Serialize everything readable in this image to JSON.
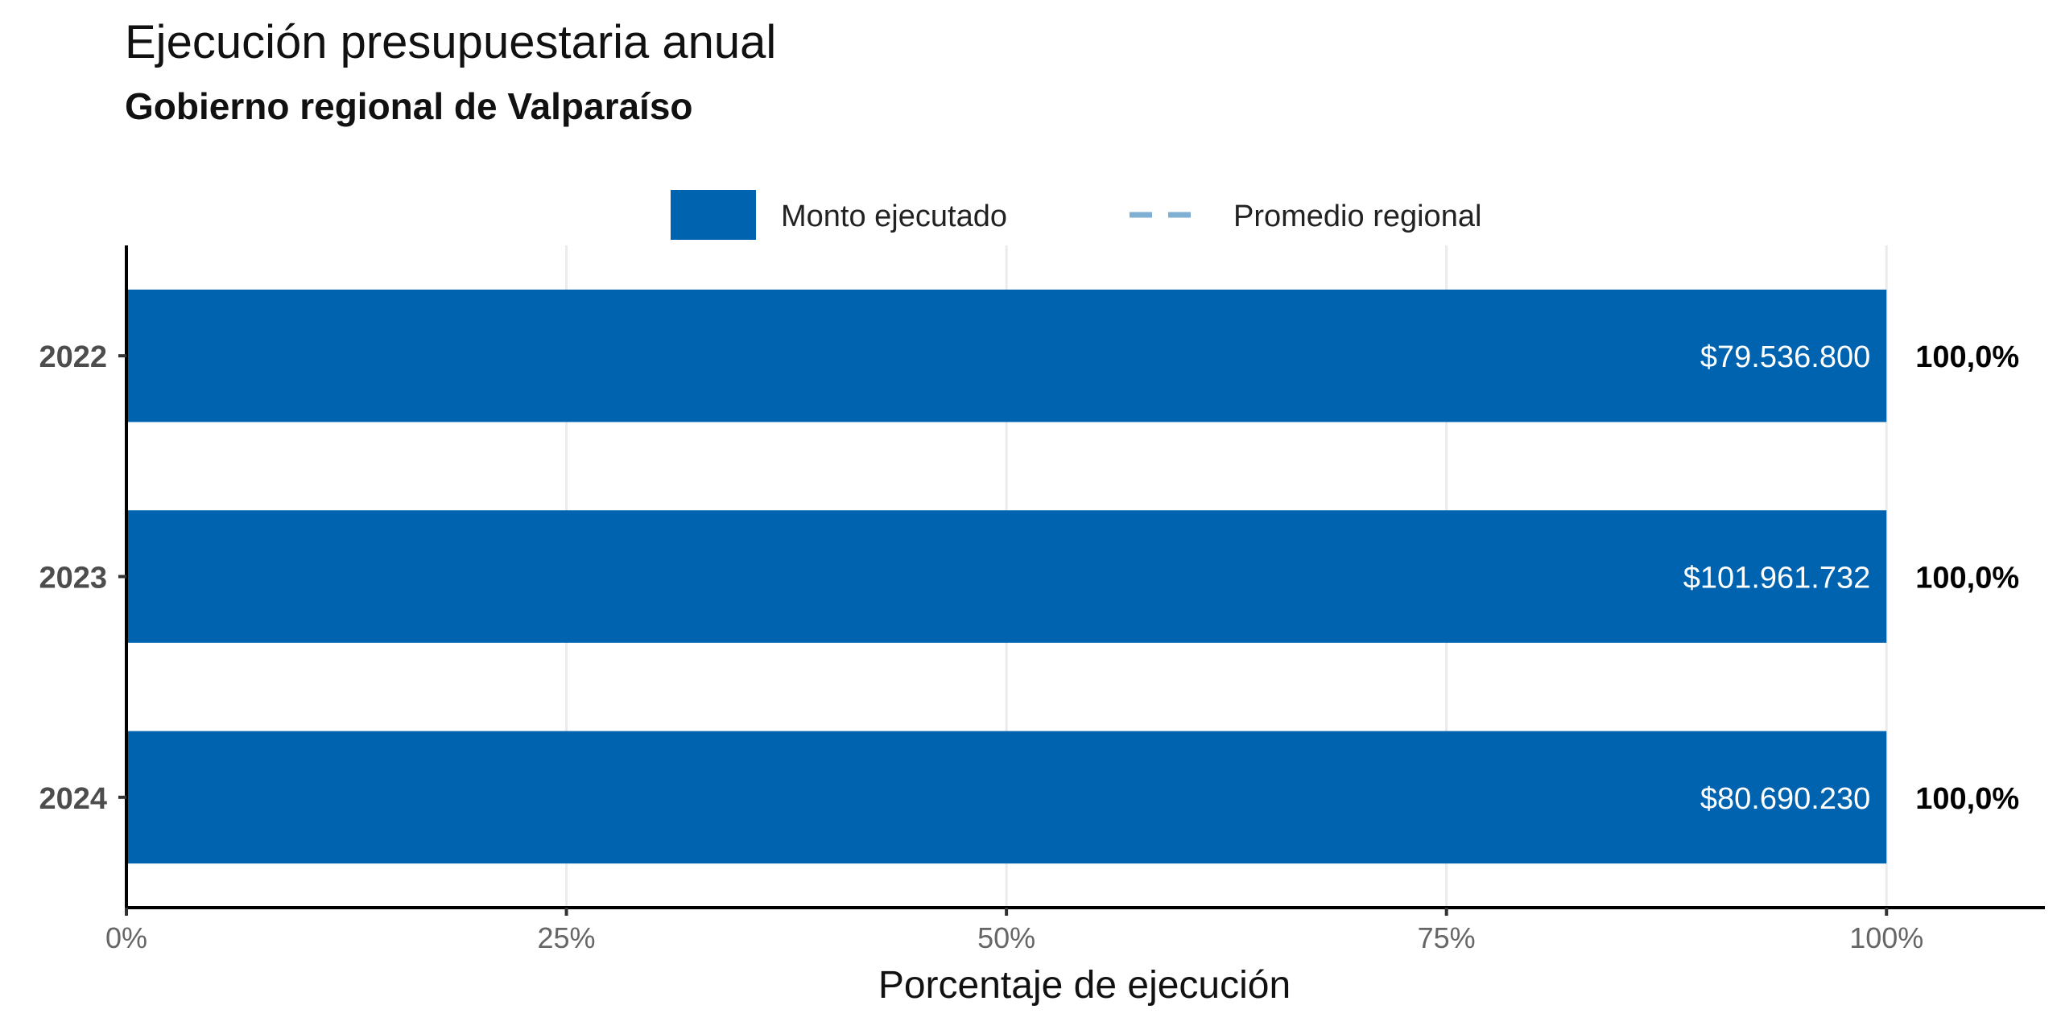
{
  "chart_data": {
    "type": "bar",
    "orientation": "horizontal",
    "title": "Ejecución presupuestaria anual",
    "subtitle": "Gobierno regional de Valparaíso",
    "categories": [
      "2022",
      "2023",
      "2024"
    ],
    "series": [
      {
        "name": "Monto ejecutado",
        "values": [
          100,
          100,
          100
        ],
        "amount_labels": [
          "$79.536.800",
          "$101.961.732",
          "$80.690.230"
        ],
        "percent_labels": [
          "100,0%",
          "100,0%",
          "100,0%"
        ],
        "color": "#0063AF"
      }
    ],
    "reference_line": {
      "name": "Promedio regional",
      "style": "dashed",
      "color": "#7FB0D3"
    },
    "xlabel": "Porcentaje de ejecución",
    "ylabel": "",
    "xlim": [
      0,
      109
    ],
    "xticks": [
      0,
      25,
      50,
      75,
      100
    ],
    "xtick_labels": [
      "0%",
      "25%",
      "50%",
      "75%",
      "100%"
    ],
    "grid": true,
    "legend_position": "top"
  }
}
